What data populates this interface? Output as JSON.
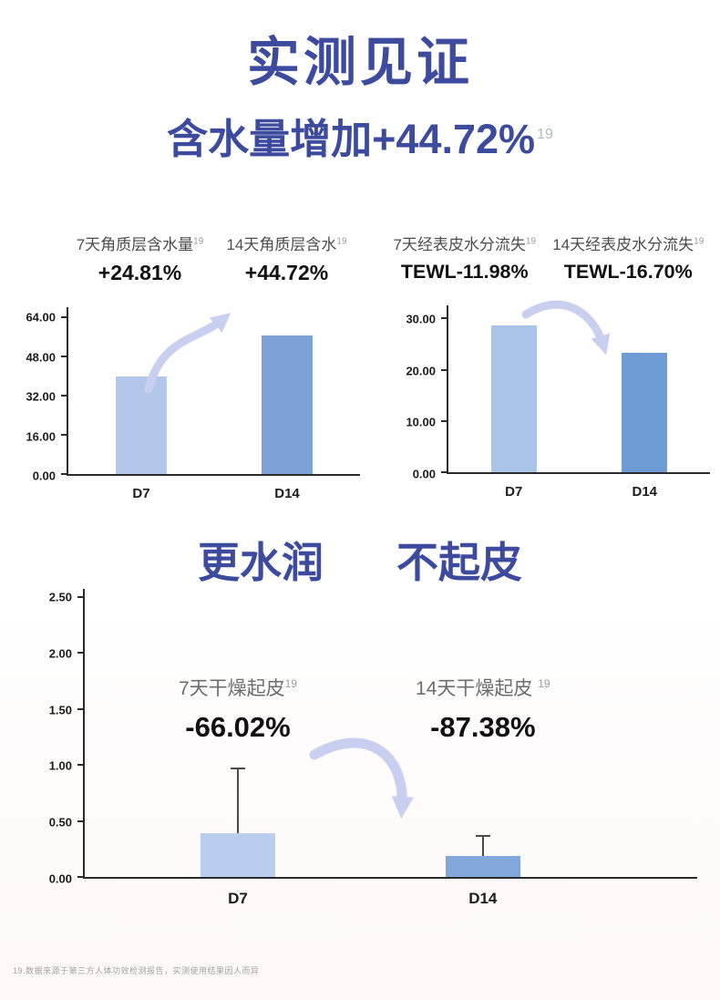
{
  "page": {
    "title": "实测见证",
    "subtitle": "含水量增加+44.72%",
    "subtitle_sup": "19",
    "section2_title_left": "更水润",
    "section2_title_right": "不起皮",
    "footnote": "19.数据来源于第三方人体功效检测报告，实测使用结果因人而异"
  },
  "colors": {
    "navy": "#3c4b9e",
    "bar_light": "#b2c8ea",
    "bar_dark": "#7da2d8",
    "arrow": "#c9cfee",
    "axis": "#2b2b2b"
  },
  "chart_data": [
    {
      "id": "stratum-corneum-hydration",
      "type": "bar",
      "categories": [
        "D7",
        "D14"
      ],
      "values": [
        40,
        56.5
      ],
      "ylim": [
        0,
        68
      ],
      "y_ticks": [
        64,
        48,
        32,
        16,
        0
      ],
      "y_tick_labels": [
        "64.00",
        "48.00",
        "32.00",
        "16.00",
        "0.00"
      ],
      "bar_colors": [
        "#b2c8ea",
        "#7da2d8"
      ],
      "grid": false,
      "annotations": [
        {
          "label": "7天角质层含水量",
          "sup": "19",
          "value": "+24.81%"
        },
        {
          "label": "14天角质层含水",
          "sup": "19",
          "value": "+44.72%"
        }
      ],
      "arrow_direction": "up"
    },
    {
      "id": "tewl-transepidermal-water-loss",
      "type": "bar",
      "categories": [
        "D7",
        "D14"
      ],
      "values": [
        28.7,
        23.3
      ],
      "ylim": [
        0,
        32.5
      ],
      "y_ticks": [
        30,
        20,
        10,
        0
      ],
      "y_tick_labels": [
        "30.00",
        "20.00",
        "10.00",
        "0.00"
      ],
      "bar_colors": [
        "#aac4e8",
        "#709cd6"
      ],
      "grid": false,
      "annotations": [
        {
          "label": "7天经表皮水分流失",
          "sup": "19",
          "value": "TEWL-11.98%"
        },
        {
          "label": "14天经表皮水分流失",
          "sup": "19",
          "value": "TEWL-16.70%"
        }
      ],
      "arrow_direction": "down"
    },
    {
      "id": "dry-flaking",
      "type": "bar",
      "categories": [
        "D7",
        "D14"
      ],
      "values": [
        0.39,
        0.19
      ],
      "error_high": [
        0.97,
        0.37
      ],
      "ylim": [
        0,
        2.57
      ],
      "y_ticks": [
        2.5,
        2.0,
        1.5,
        1.0,
        0.5,
        0
      ],
      "y_tick_labels": [
        "2.50",
        "2.00",
        "1.50",
        "1.00",
        "0.50",
        "0.00"
      ],
      "bar_colors": [
        "#b9cdec",
        "#82a7db"
      ],
      "grid": false,
      "annotations": [
        {
          "label": "7天干燥起皮",
          "sup": "19",
          "value": "-66.02%"
        },
        {
          "label": "14天干燥起皮 ",
          "sup": "19",
          "value": "-87.38%"
        }
      ],
      "arrow_direction": "down"
    }
  ]
}
